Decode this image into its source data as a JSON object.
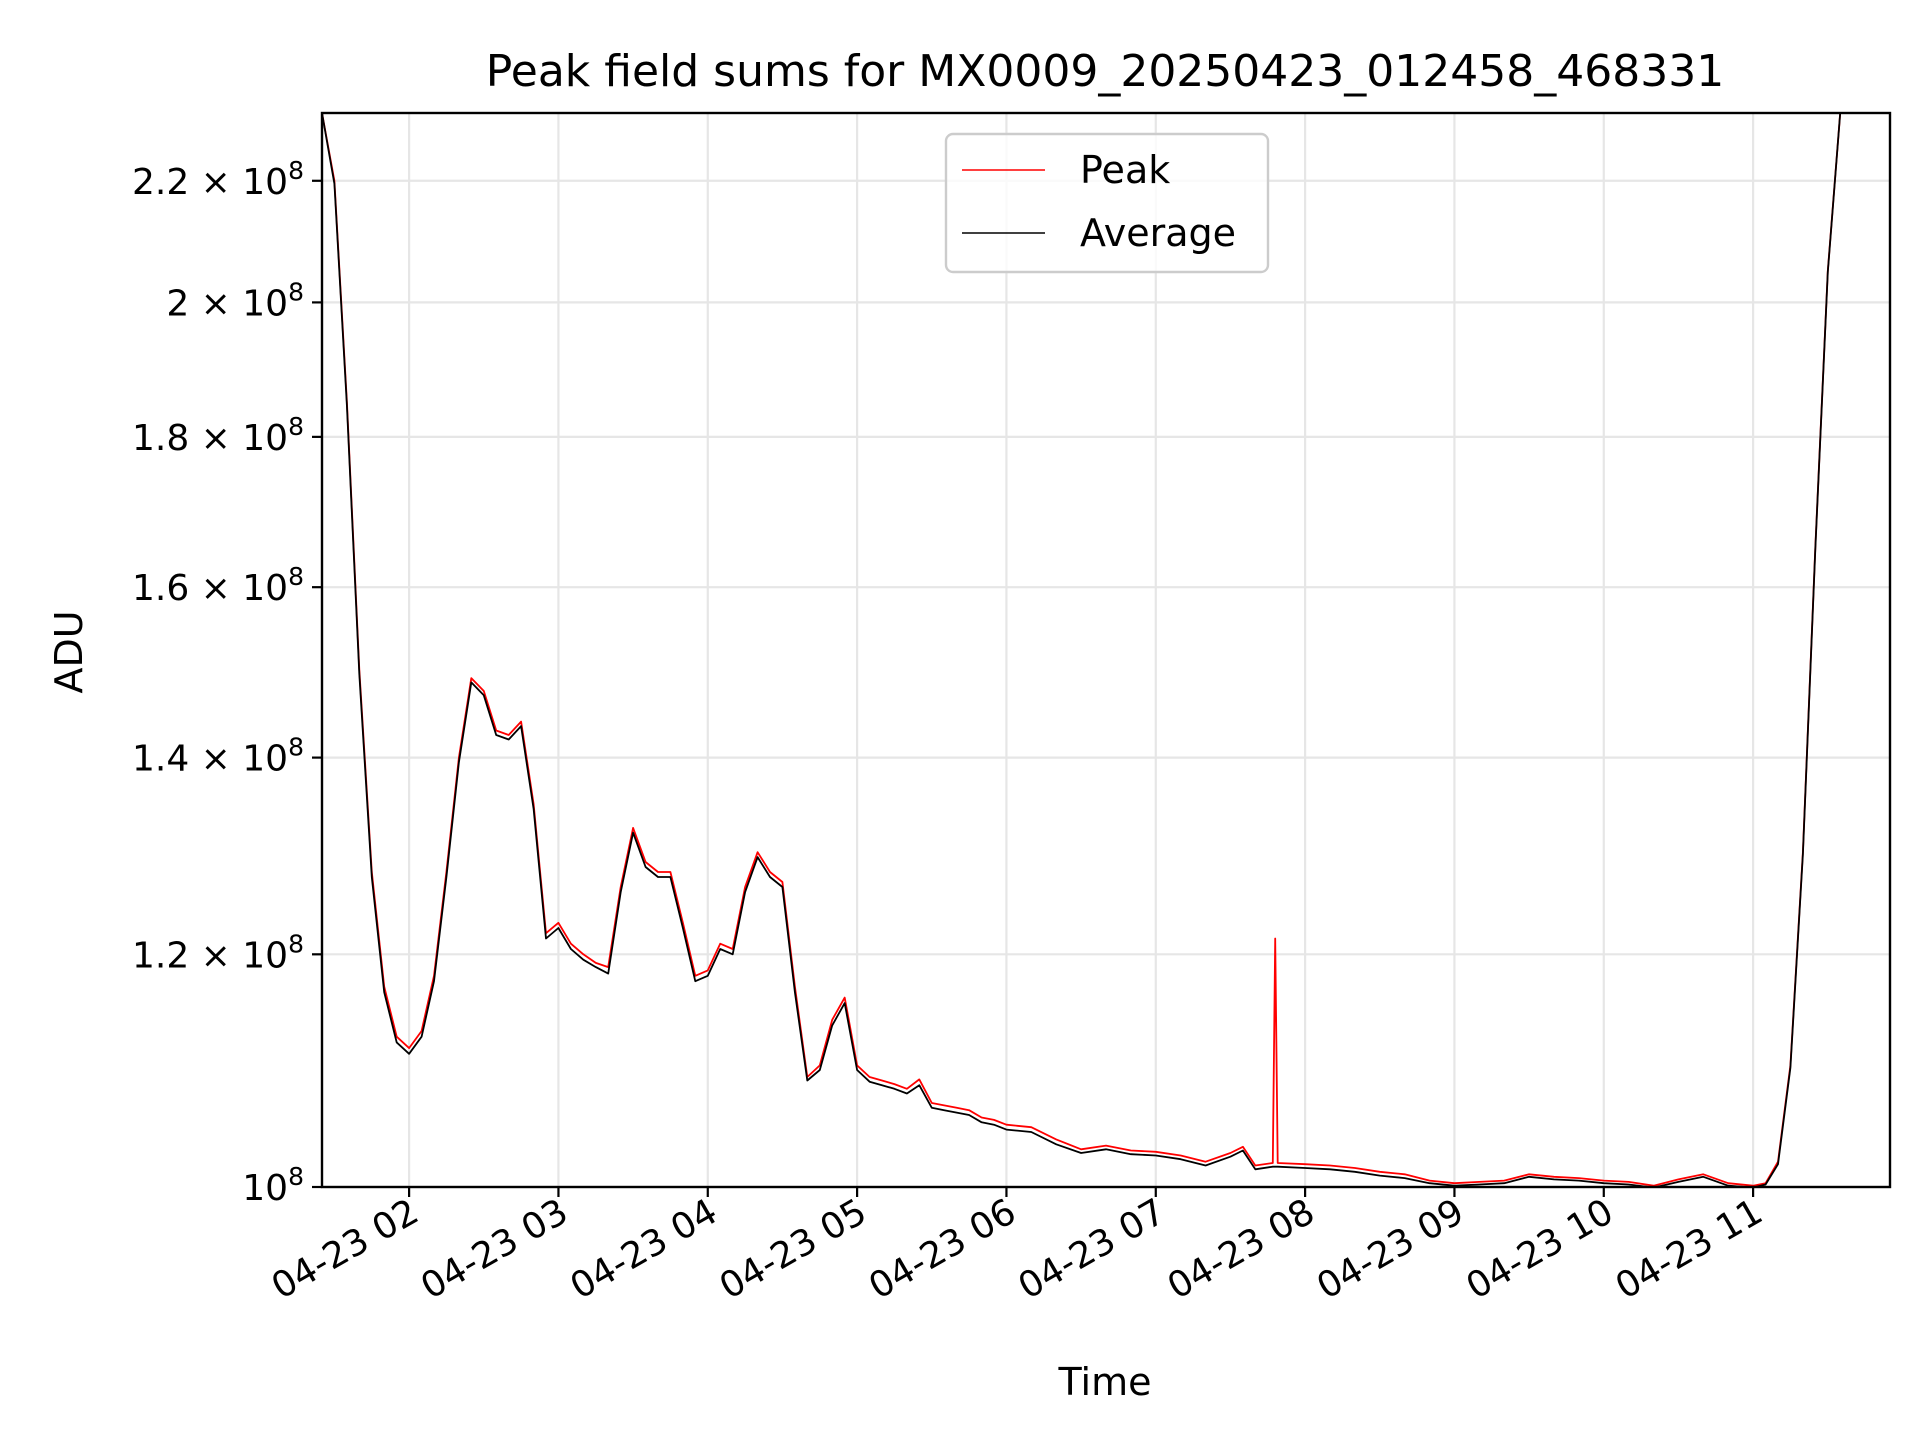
{
  "chart_data": {
    "type": "line",
    "title": "Peak field sums for MX0009_20250423_012458_468331",
    "xlabel": "Time",
    "ylabel": "ADU",
    "yscale": "log",
    "ylim": [
      100000000,
      232000000
    ],
    "xlim": [
      "2025-04-23 01:25",
      "2025-04-23 11:55"
    ],
    "grid": true,
    "legend_position": "upper center",
    "x_ticks": [
      "2025-04-23 02:00",
      "2025-04-23 03:00",
      "2025-04-23 04:00",
      "2025-04-23 05:00",
      "2025-04-23 06:00",
      "2025-04-23 07:00",
      "2025-04-23 08:00",
      "2025-04-23 09:00",
      "2025-04-23 10:00",
      "2025-04-23 11:00"
    ],
    "x_tick_labels": [
      "04-23 02",
      "04-23 03",
      "04-23 04",
      "04-23 05",
      "04-23 06",
      "04-23 07",
      "04-23 08",
      "04-23 09",
      "04-23 10",
      "04-23 11"
    ],
    "y_ticks": [
      {
        "value": 100000000,
        "mantissa": "",
        "exponent": "8"
      },
      {
        "value": 120000000,
        "mantissa": "1.2",
        "exponent": "8"
      },
      {
        "value": 140000000,
        "mantissa": "1.4",
        "exponent": "8"
      },
      {
        "value": 160000000,
        "mantissa": "1.6",
        "exponent": "8"
      },
      {
        "value": 180000000,
        "mantissa": "1.8",
        "exponent": "8"
      },
      {
        "value": 200000000,
        "mantissa": "2",
        "exponent": "8"
      },
      {
        "value": 220000000,
        "mantissa": "2.2",
        "exponent": "8"
      }
    ],
    "series": [
      {
        "name": "Peak",
        "color": "#ff0000",
        "x": [
          "2025-04-23 01:25",
          "2025-04-23 01:30",
          "2025-04-23 01:35",
          "2025-04-23 01:40",
          "2025-04-23 01:45",
          "2025-04-23 01:50",
          "2025-04-23 01:55",
          "2025-04-23 02:00",
          "2025-04-23 02:05",
          "2025-04-23 02:10",
          "2025-04-23 02:15",
          "2025-04-23 02:20",
          "2025-04-23 02:25",
          "2025-04-23 02:30",
          "2025-04-23 02:35",
          "2025-04-23 02:40",
          "2025-04-23 02:45",
          "2025-04-23 02:50",
          "2025-04-23 02:55",
          "2025-04-23 03:00",
          "2025-04-23 03:05",
          "2025-04-23 03:10",
          "2025-04-23 03:15",
          "2025-04-23 03:20",
          "2025-04-23 03:25",
          "2025-04-23 03:30",
          "2025-04-23 03:35",
          "2025-04-23 03:40",
          "2025-04-23 03:45",
          "2025-04-23 03:50",
          "2025-04-23 03:55",
          "2025-04-23 04:00",
          "2025-04-23 04:05",
          "2025-04-23 04:10",
          "2025-04-23 04:15",
          "2025-04-23 04:20",
          "2025-04-23 04:25",
          "2025-04-23 04:30",
          "2025-04-23 04:35",
          "2025-04-23 04:40",
          "2025-04-23 04:45",
          "2025-04-23 04:50",
          "2025-04-23 04:55",
          "2025-04-23 05:00",
          "2025-04-23 05:05",
          "2025-04-23 05:10",
          "2025-04-23 05:15",
          "2025-04-23 05:20",
          "2025-04-23 05:25",
          "2025-04-23 05:30",
          "2025-04-23 05:35",
          "2025-04-23 05:40",
          "2025-04-23 05:45",
          "2025-04-23 05:50",
          "2025-04-23 05:55",
          "2025-04-23 06:00",
          "2025-04-23 06:10",
          "2025-04-23 06:20",
          "2025-04-23 06:30",
          "2025-04-23 06:40",
          "2025-04-23 06:50",
          "2025-04-23 07:00",
          "2025-04-23 07:10",
          "2025-04-23 07:20",
          "2025-04-23 07:30",
          "2025-04-23 07:35",
          "2025-04-23 07:40",
          "2025-04-23 07:47",
          "2025-04-23 07:48",
          "2025-04-23 07:49",
          "2025-04-23 08:00",
          "2025-04-23 08:10",
          "2025-04-23 08:20",
          "2025-04-23 08:30",
          "2025-04-23 08:40",
          "2025-04-23 08:50",
          "2025-04-23 09:00",
          "2025-04-23 09:10",
          "2025-04-23 09:20",
          "2025-04-23 09:30",
          "2025-04-23 09:40",
          "2025-04-23 09:50",
          "2025-04-23 10:00",
          "2025-04-23 10:10",
          "2025-04-23 10:20",
          "2025-04-23 10:30",
          "2025-04-23 10:40",
          "2025-04-23 10:50",
          "2025-04-23 11:00",
          "2025-04-23 11:05",
          "2025-04-23 11:10",
          "2025-04-23 11:15",
          "2025-04-23 11:20",
          "2025-04-23 11:25",
          "2025-04-23 11:30",
          "2025-04-23 11:35",
          "2025-04-23 11:40",
          "2025-04-23 11:45",
          "2025-04-23 11:50",
          "2025-04-23 11:55"
        ],
        "values": [
          232000000,
          220000000,
          185000000,
          150000000,
          128000000,
          117000000,
          112500000,
          111500000,
          113000000,
          118000000,
          128000000,
          140000000,
          149000000,
          147500000,
          143000000,
          142500000,
          144000000,
          135000000,
          122000000,
          123000000,
          121000000,
          120000000,
          119200000,
          118800000,
          126500000,
          132500000,
          129000000,
          128000000,
          128000000,
          123000000,
          118000000,
          118500000,
          121000000,
          120500000,
          126500000,
          130000000,
          128000000,
          127000000,
          117000000,
          109000000,
          110000000,
          114000000,
          116000000,
          110000000,
          109000000,
          108700000,
          108400000,
          108000000,
          108800000,
          106800000,
          106600000,
          106400000,
          106200000,
          105600000,
          105400000,
          105000000,
          104800000,
          103800000,
          103000000,
          103300000,
          102900000,
          102800000,
          102500000,
          102000000,
          102700000,
          103200000,
          101700000,
          101900000,
          121500000,
          101900000,
          101800000,
          101700000,
          101500000,
          101200000,
          101000000,
          100500000,
          100300000,
          100400000,
          100500000,
          101000000,
          100800000,
          100700000,
          100500000,
          100400000,
          100100000,
          100600000,
          101000000,
          100300000,
          100100000,
          100300000,
          102000000,
          110000000,
          130000000,
          165000000,
          205000000,
          232000000,
          232000000,
          232000000,
          232000000,
          232000000
        ]
      },
      {
        "name": "Average",
        "color": "#000000",
        "x": [
          "2025-04-23 01:25",
          "2025-04-23 01:30",
          "2025-04-23 01:35",
          "2025-04-23 01:40",
          "2025-04-23 01:45",
          "2025-04-23 01:50",
          "2025-04-23 01:55",
          "2025-04-23 02:00",
          "2025-04-23 02:05",
          "2025-04-23 02:10",
          "2025-04-23 02:15",
          "2025-04-23 02:20",
          "2025-04-23 02:25",
          "2025-04-23 02:30",
          "2025-04-23 02:35",
          "2025-04-23 02:40",
          "2025-04-23 02:45",
          "2025-04-23 02:50",
          "2025-04-23 02:55",
          "2025-04-23 03:00",
          "2025-04-23 03:05",
          "2025-04-23 03:10",
          "2025-04-23 03:15",
          "2025-04-23 03:20",
          "2025-04-23 03:25",
          "2025-04-23 03:30",
          "2025-04-23 03:35",
          "2025-04-23 03:40",
          "2025-04-23 03:45",
          "2025-04-23 03:50",
          "2025-04-23 03:55",
          "2025-04-23 04:00",
          "2025-04-23 04:05",
          "2025-04-23 04:10",
          "2025-04-23 04:15",
          "2025-04-23 04:20",
          "2025-04-23 04:25",
          "2025-04-23 04:30",
          "2025-04-23 04:35",
          "2025-04-23 04:40",
          "2025-04-23 04:45",
          "2025-04-23 04:50",
          "2025-04-23 04:55",
          "2025-04-23 05:00",
          "2025-04-23 05:05",
          "2025-04-23 05:10",
          "2025-04-23 05:15",
          "2025-04-23 05:20",
          "2025-04-23 05:25",
          "2025-04-23 05:30",
          "2025-04-23 05:35",
          "2025-04-23 05:40",
          "2025-04-23 05:45",
          "2025-04-23 05:50",
          "2025-04-23 05:55",
          "2025-04-23 06:00",
          "2025-04-23 06:10",
          "2025-04-23 06:20",
          "2025-04-23 06:30",
          "2025-04-23 06:40",
          "2025-04-23 06:50",
          "2025-04-23 07:00",
          "2025-04-23 07:10",
          "2025-04-23 07:20",
          "2025-04-23 07:30",
          "2025-04-23 07:35",
          "2025-04-23 07:40",
          "2025-04-23 07:47",
          "2025-04-23 07:48",
          "2025-04-23 07:49",
          "2025-04-23 08:00",
          "2025-04-23 08:10",
          "2025-04-23 08:20",
          "2025-04-23 08:30",
          "2025-04-23 08:40",
          "2025-04-23 08:50",
          "2025-04-23 09:00",
          "2025-04-23 09:10",
          "2025-04-23 09:20",
          "2025-04-23 09:30",
          "2025-04-23 09:40",
          "2025-04-23 09:50",
          "2025-04-23 10:00",
          "2025-04-23 10:10",
          "2025-04-23 10:20",
          "2025-04-23 10:30",
          "2025-04-23 10:40",
          "2025-04-23 10:50",
          "2025-04-23 11:00",
          "2025-04-23 11:05",
          "2025-04-23 11:10",
          "2025-04-23 11:15",
          "2025-04-23 11:20",
          "2025-04-23 11:25",
          "2025-04-23 11:30",
          "2025-04-23 11:35",
          "2025-04-23 11:40",
          "2025-04-23 11:45",
          "2025-04-23 11:50",
          "2025-04-23 11:55"
        ],
        "values": [
          232000000,
          219500000,
          184500000,
          149500000,
          127500000,
          116500000,
          112000000,
          111000000,
          112500000,
          117500000,
          127500000,
          139500000,
          148500000,
          147000000,
          142500000,
          142000000,
          143500000,
          134500000,
          121500000,
          122500000,
          120500000,
          119500000,
          118800000,
          118200000,
          126000000,
          132000000,
          128500000,
          127500000,
          127500000,
          122500000,
          117500000,
          118000000,
          120500000,
          120000000,
          126000000,
          129500000,
          127500000,
          126500000,
          116500000,
          108700000,
          109600000,
          113500000,
          115500000,
          109600000,
          108600000,
          108300000,
          108000000,
          107600000,
          108300000,
          106400000,
          106200000,
          106000000,
          105800000,
          105200000,
          105000000,
          104600000,
          104400000,
          103400000,
          102700000,
          103000000,
          102600000,
          102500000,
          102200000,
          101700000,
          102400000,
          102900000,
          101400000,
          101600000,
          101600000,
          101600000,
          101500000,
          101400000,
          101200000,
          100900000,
          100700000,
          100300000,
          100100000,
          100200000,
          100300000,
          100800000,
          100600000,
          100500000,
          100300000,
          100200000,
          99950000,
          100400000,
          100800000,
          100100000,
          99950000,
          100200000,
          101800000,
          109800000,
          129800000,
          164800000,
          204800000,
          232000000,
          232000000,
          232000000,
          232000000,
          232000000
        ]
      }
    ]
  }
}
